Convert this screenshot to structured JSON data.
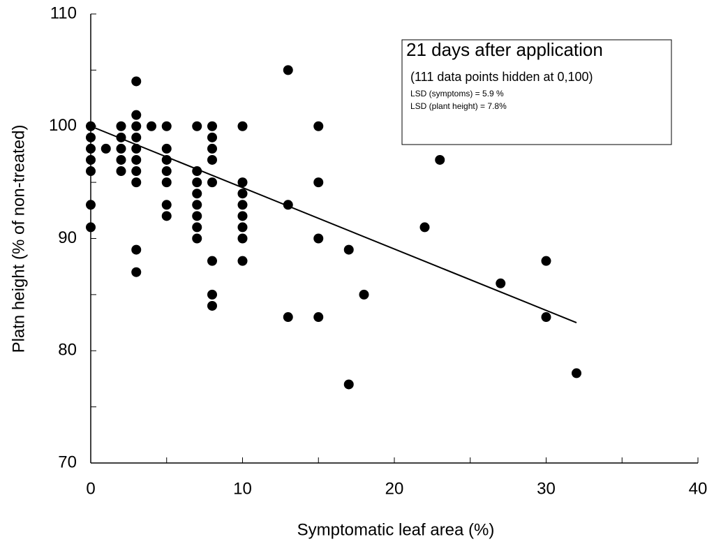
{
  "chart_data": {
    "type": "scatter",
    "x_label": "Symptomatic leaf area (%)",
    "y_label": "Platn height (% of non-treated)",
    "annotation": {
      "title": "21 days after application",
      "lines": [
        "(111 data points hidden at 0,100)",
        "LSD (symptoms) = 5.9 %",
        "LSD (plant height) = 7.8%"
      ]
    },
    "xlim": [
      0,
      40
    ],
    "xticks": [
      0,
      10,
      20,
      30,
      40
    ],
    "xminorticks": [
      5,
      15,
      25,
      35
    ],
    "ylim": [
      70,
      110
    ],
    "yticks": [
      70,
      80,
      90,
      100,
      110
    ],
    "yminorticks": [
      75,
      85,
      95,
      105
    ],
    "series": [
      {
        "color": "#000000",
        "x": [
          0,
          0,
          0,
          0,
          0,
          0,
          0,
          1,
          2,
          2,
          2,
          2,
          2,
          3,
          3,
          3,
          3,
          3,
          3,
          3,
          3,
          3,
          3,
          4,
          5,
          5,
          5,
          5,
          5,
          5,
          5,
          7,
          7,
          7,
          7,
          7,
          7,
          7,
          7,
          8,
          8,
          8,
          8,
          8,
          8,
          8,
          8,
          10,
          10,
          10,
          10,
          10,
          10,
          10,
          10,
          13,
          13,
          13,
          15,
          15,
          15,
          15,
          17,
          17,
          18,
          22,
          23,
          27,
          30,
          30,
          32
        ],
        "values": [
          100,
          99,
          98,
          97,
          96,
          93,
          91,
          98,
          100,
          99,
          98,
          97,
          96,
          104,
          101,
          100,
          99,
          98,
          97,
          96,
          95,
          89,
          87,
          100,
          100,
          98,
          97,
          96,
          95,
          93,
          92,
          100,
          96,
          95,
          94,
          93,
          92,
          91,
          90,
          100,
          99,
          98,
          97,
          95,
          88,
          85,
          84,
          100,
          95,
          94,
          93,
          92,
          91,
          90,
          88,
          105,
          93,
          83,
          100,
          95,
          90,
          83,
          89,
          77,
          85,
          91,
          97,
          86,
          88,
          83,
          78
        ]
      }
    ],
    "trendline": {
      "color": "#000000",
      "x": [
        0,
        32
      ],
      "values": [
        100,
        82.5
      ]
    }
  }
}
